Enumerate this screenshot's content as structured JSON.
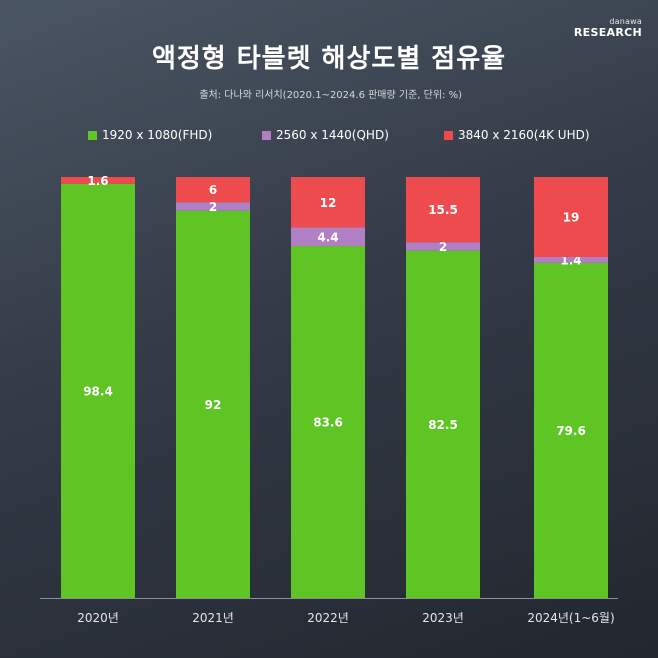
{
  "brand": {
    "small": "danawa",
    "big": "RESEARCH"
  },
  "title": "액정형 타블렛 해상도별 점유율",
  "subtitle": "출처: 다나와 리서치(2020.1~2024.6 판매량 기준, 단위: %)",
  "colors": {
    "fhd": "#5fc524",
    "qhd": "#b07fc4",
    "uhd": "#ee4b4f"
  },
  "chart_data": {
    "type": "bar",
    "stacked": true,
    "title": "액정형 타블렛 해상도별 점유율",
    "unit": "%",
    "categories": [
      "2020년",
      "2021년",
      "2022년",
      "2023년",
      "2024년(1~6월)"
    ],
    "series": [
      {
        "name": "1920 x 1080(FHD)",
        "color_key": "fhd",
        "values": [
          98.4,
          92,
          83.6,
          82.5,
          79.6
        ],
        "labels": [
          "98.4",
          "92",
          "83.6",
          "82.5",
          "79.6"
        ]
      },
      {
        "name": "2560 x 1440(QHD)",
        "color_key": "qhd",
        "values": [
          0,
          2,
          4.4,
          2,
          1.4
        ],
        "labels": [
          "",
          "2",
          "4.4",
          "2",
          "1.4"
        ]
      },
      {
        "name": "3840 x 2160(4K UHD)",
        "color_key": "uhd",
        "values": [
          1.6,
          6,
          12,
          15.5,
          19
        ],
        "labels": [
          "1.6",
          "6",
          "12",
          "15.5",
          "19"
        ]
      }
    ],
    "ylim": [
      0,
      100
    ],
    "legend_position": "top"
  }
}
